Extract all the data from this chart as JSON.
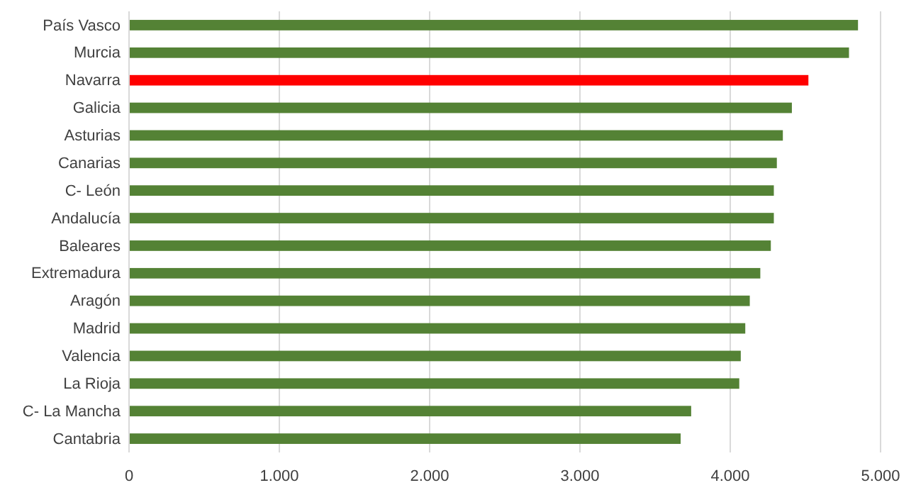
{
  "chart_data": {
    "type": "bar",
    "orientation": "horizontal",
    "categories": [
      "País Vasco",
      "Murcia",
      "Navarra",
      "Galicia",
      "Asturias",
      "Canarias",
      "C- León",
      "Andalucía",
      "Baleares",
      "Extremadura",
      "Aragón",
      "Madrid",
      "Valencia",
      "La Rioja",
      "C- La Mancha",
      "Cantabria"
    ],
    "values": [
      4850,
      4790,
      4520,
      4410,
      4350,
      4310,
      4290,
      4290,
      4270,
      4200,
      4130,
      4100,
      4070,
      4060,
      3740,
      3670
    ],
    "colors": [
      "#548235",
      "#548235",
      "#ff0000",
      "#548235",
      "#548235",
      "#548235",
      "#548235",
      "#548235",
      "#548235",
      "#548235",
      "#548235",
      "#548235",
      "#548235",
      "#548235",
      "#548235",
      "#548235"
    ],
    "xlim": [
      0,
      5000
    ],
    "xticks": [
      0,
      {
        "value": 1000,
        "label": "1.000"
      },
      {
        "value": 2000,
        "label": "2.000"
      },
      {
        "value": 3000,
        "label": "3.000"
      },
      {
        "value": 4000,
        "label": "4.000"
      },
      {
        "value": 5000,
        "label": "5.000"
      }
    ],
    "grid": "x"
  }
}
